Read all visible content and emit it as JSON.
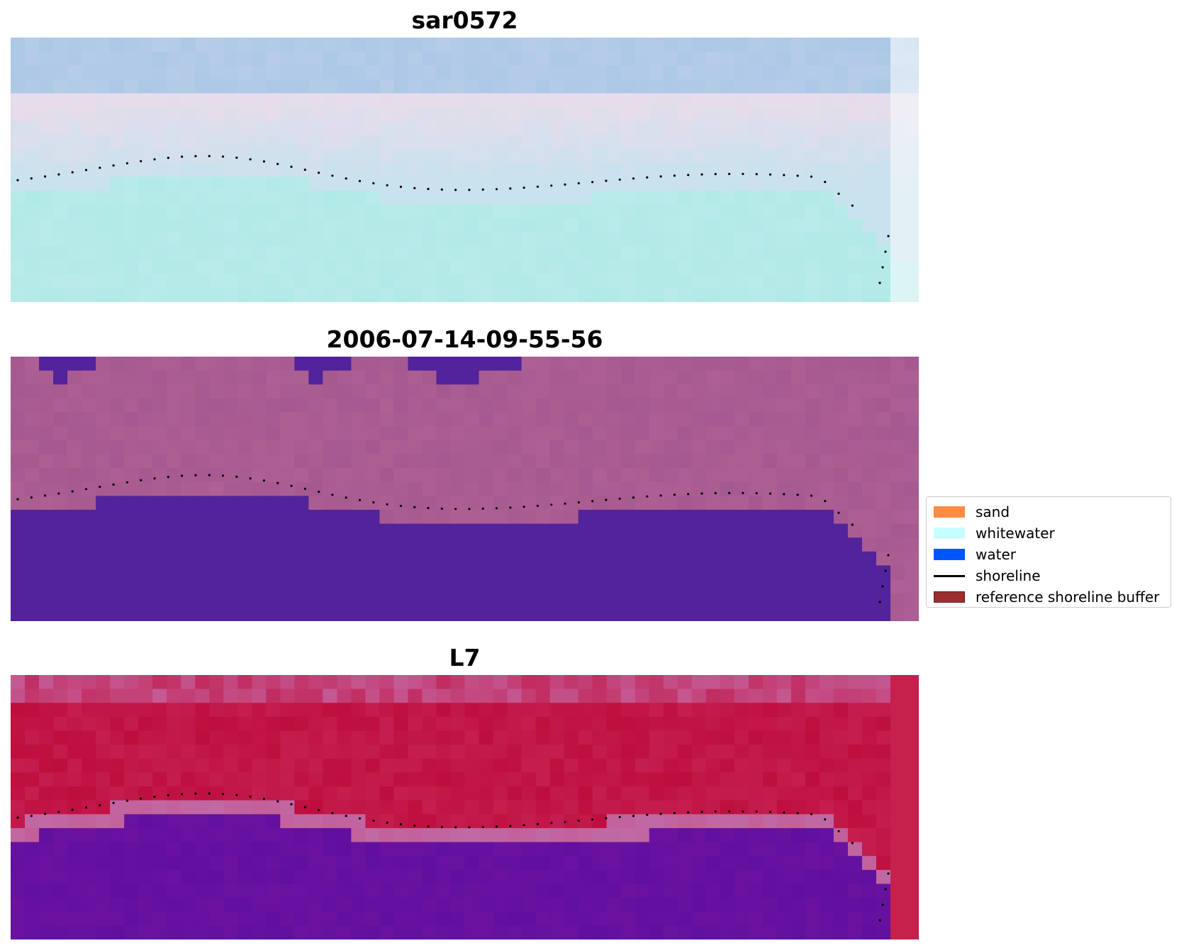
{
  "panels": [
    {
      "title": "sar0572",
      "style": "rgb"
    },
    {
      "title": "2006-07-14-09-55-56",
      "style": "classified"
    },
    {
      "title": "L7",
      "style": "index"
    }
  ],
  "legend": {
    "items": [
      {
        "label": "sand",
        "color": "#ff8c42",
        "kind": "patch"
      },
      {
        "label": "whitewater",
        "color": "#c8ffff",
        "kind": "patch"
      },
      {
        "label": "water",
        "color": "#0055ff",
        "kind": "patch"
      },
      {
        "label": "shoreline",
        "color": "#000000",
        "kind": "line"
      },
      {
        "label": "reference shoreline buffer",
        "color": "#9b2e31",
        "kind": "patch",
        "edge": "#6a1a1a"
      }
    ]
  },
  "colors": {
    "sky_blue": "#a7c6e4",
    "sky_pink": "#e7dcea",
    "sea_cyan": "#aeeae6",
    "class_background": "#a2578f",
    "class_water": "#52239a",
    "index_high": "#be0e3e",
    "index_mid": "#c55a93",
    "index_low": "#5e0ea0"
  }
}
